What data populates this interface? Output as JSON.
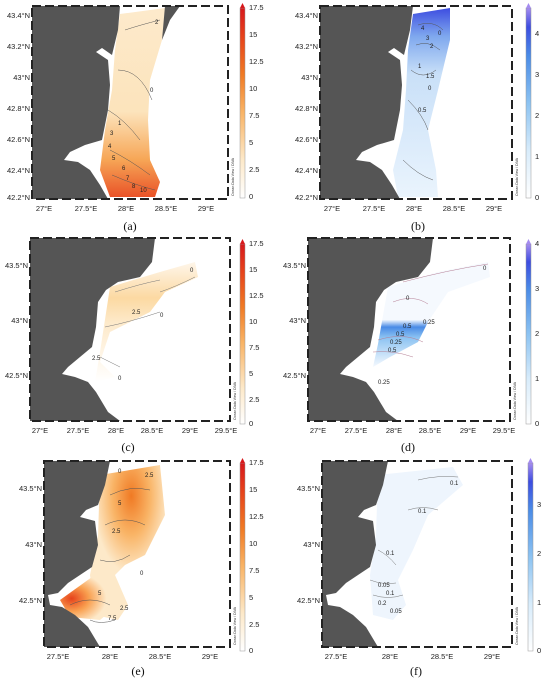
{
  "panels": [
    {
      "caption": "(a)",
      "lat_labels": [
        "43.4°N",
        "43.2°N",
        "43°N",
        "42.8°N",
        "42.6°N",
        "42.4°N",
        "42.2°N"
      ],
      "lon_labels": [
        "27°E",
        "27.5°E",
        "28°E",
        "28.5°E",
        "29°E"
      ],
      "colorbar": {
        "ticks": [
          "17.5",
          "15",
          "12.5",
          "10",
          "7.5",
          "5",
          "2.5",
          "0"
        ],
        "colors": [
          "#ffffff",
          "#fde9c9",
          "#f9b466",
          "#f07a24",
          "#e6421b",
          "#d7191c"
        ],
        "max_color": "#d7191c"
      },
      "contour_labels": [
        "2",
        "0",
        "1",
        "3",
        "4",
        "5",
        "6",
        "7",
        "8",
        "10"
      ],
      "credit": "Ocean Data View / DIVA"
    },
    {
      "caption": "(b)",
      "lat_labels": [
        "43.4°N",
        "43.2°N",
        "43°N",
        "42.8°N",
        "42.6°N",
        "42.4°N",
        "42.2°N"
      ],
      "lon_labels": [
        "27°E",
        "27.5°E",
        "28°E",
        "28.5°E",
        "29°E"
      ],
      "colorbar": {
        "ticks": [
          "4",
          "3",
          "2",
          "1",
          "0"
        ],
        "colors": [
          "#ffffff",
          "#d8ecfb",
          "#8cc3f2",
          "#4a8be6",
          "#3d4de0",
          "#7d5ce0"
        ],
        "max_color": "#a58cf0"
      },
      "contour_labels": [
        "4",
        "3",
        "2",
        "1",
        "1.5",
        "0.5",
        "0",
        "0"
      ],
      "credit": "Ocean Data View / DIVA"
    },
    {
      "caption": "(c)",
      "lat_labels": [
        "43.5°N",
        "43°N",
        "42.5°N"
      ],
      "lon_labels": [
        "27°E",
        "27.5°E",
        "28°E",
        "28.5°E",
        "29°E",
        "29.5°E"
      ],
      "colorbar": {
        "ticks": [
          "17.5",
          "15",
          "12.5",
          "10",
          "7.5",
          "5",
          "2.5",
          "0"
        ],
        "colors": [
          "#ffffff",
          "#fde9c9",
          "#f9b466",
          "#f07a24",
          "#e6421b",
          "#d7191c"
        ],
        "max_color": "#d7191c"
      },
      "contour_labels": [
        "2.5",
        "0",
        "0",
        "2.5",
        "0"
      ],
      "credit": "Ocean Data View / DIVA"
    },
    {
      "caption": "(d)",
      "lat_labels": [
        "43.5°N",
        "43°N",
        "42.5°N"
      ],
      "lon_labels": [
        "27°E",
        "27.5°E",
        "28°E",
        "28.5°E",
        "29°E",
        "29.5°E"
      ],
      "colorbar": {
        "ticks": [
          "4",
          "3",
          "2",
          "1",
          "0"
        ],
        "colors": [
          "#ffffff",
          "#d8ecfb",
          "#8cc3f2",
          "#4a8be6",
          "#3d4de0",
          "#7d5ce0"
        ],
        "max_color": "#a58cf0"
      },
      "contour_labels": [
        "0",
        "0",
        "0.25",
        "0.5",
        "0.5",
        "0.25",
        "0.5",
        "0.25"
      ],
      "credit": "Ocean Data View / DIVA"
    },
    {
      "caption": "(e)",
      "lat_labels": [
        "43.5°N",
        "43°N",
        "42.5°N"
      ],
      "lon_labels": [
        "27.5°E",
        "28°E",
        "28.5°E",
        "29°E"
      ],
      "colorbar": {
        "ticks": [
          "17.5",
          "15",
          "12.5",
          "10",
          "7.5",
          "5",
          "2.5",
          "0"
        ],
        "colors": [
          "#ffffff",
          "#fde9c9",
          "#f9b466",
          "#f07a24",
          "#e6421b",
          "#d7191c"
        ],
        "max_color": "#d7191c"
      },
      "contour_labels": [
        "0",
        "2.5",
        "5",
        "5",
        "2.5",
        "0",
        "2.5",
        "7.5"
      ],
      "credit": "Ocean Data View / DIVA"
    },
    {
      "caption": "(f)",
      "lat_labels": [
        "43.5°N",
        "43°N",
        "42.5°N"
      ],
      "lon_labels": [
        "27.5°E",
        "28°E",
        "28.5°E",
        "29°E"
      ],
      "colorbar": {
        "ticks": [
          "3",
          "2",
          "1",
          "0"
        ],
        "colors": [
          "#ffffff",
          "#d8ecfb",
          "#8cc3f2",
          "#4a8be6",
          "#3d4de0",
          "#7d5ce0"
        ],
        "max_color": "#a58cf0"
      },
      "contour_labels": [
        "0.1",
        "0.1",
        "0.1",
        "0.05",
        "0.1",
        "0.2",
        "0.05"
      ],
      "credit": "Ocean Data View / DIVA"
    }
  ]
}
